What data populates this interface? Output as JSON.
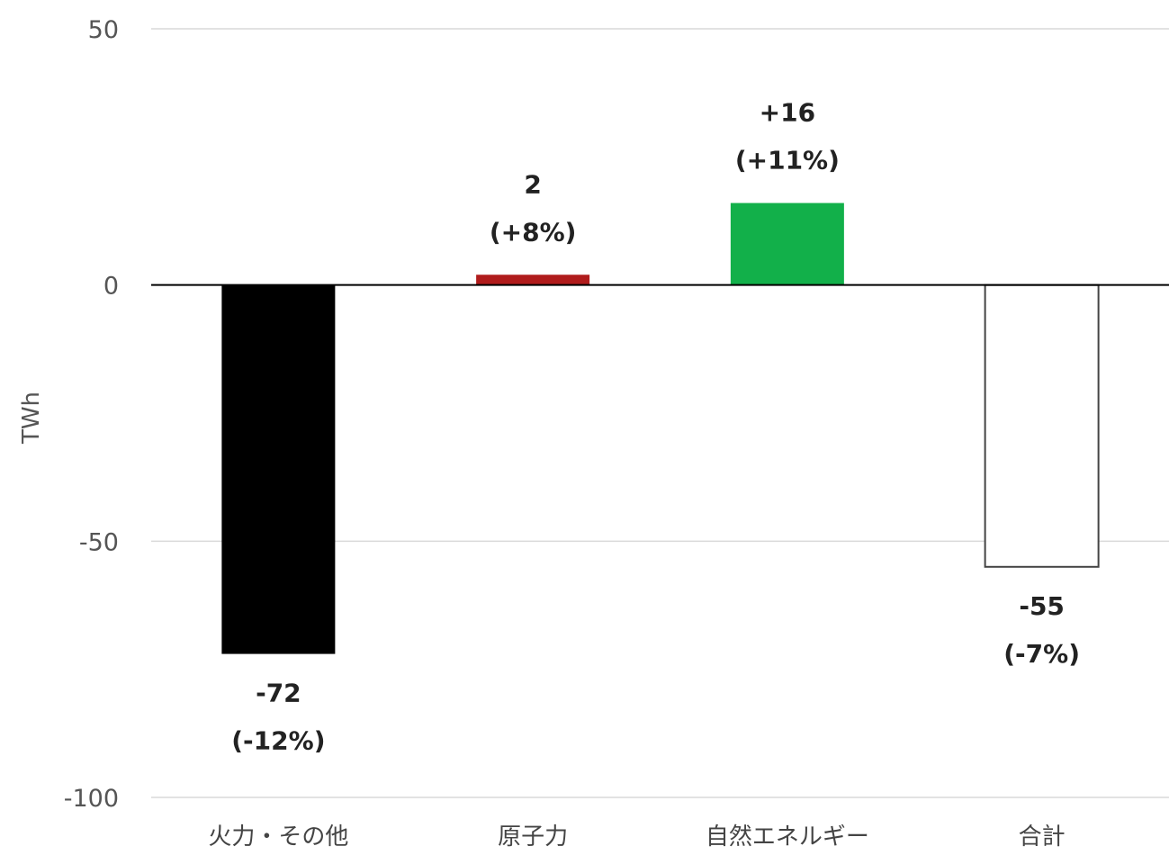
{
  "chart_data": {
    "type": "bar",
    "title": "",
    "xlabel": "",
    "ylabel": "TWh",
    "ylim": [
      -100,
      50
    ],
    "yticks": [
      50,
      0,
      -50,
      -100
    ],
    "grid": true,
    "legend": "none",
    "categories": [
      "火力・その他",
      "原子力",
      "自然エネルギー",
      "合計"
    ],
    "values": [
      -72,
      2,
      16,
      -55
    ],
    "data_labels": [
      {
        "value": "-72",
        "percent": "(-12%)"
      },
      {
        "value": "2",
        "percent": "(+8%)"
      },
      {
        "value": "+16",
        "percent": "(+11%)"
      },
      {
        "value": "-55",
        "percent": "(-7%)"
      }
    ],
    "colors": [
      "#000000",
      "#b01c1c",
      "#12b04a",
      "#ffffff"
    ],
    "bar_outline": "#444444"
  }
}
